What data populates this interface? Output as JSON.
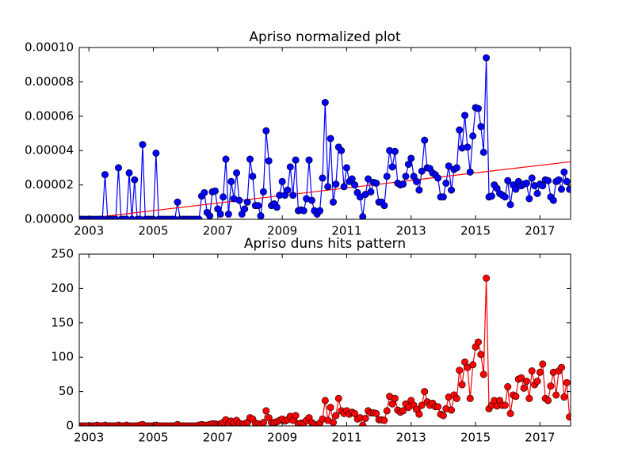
{
  "chart_data": [
    {
      "type": "line",
      "title": "Apriso normalized plot",
      "xlim": [
        2002.7,
        2017.95
      ],
      "xticks": [
        2003,
        2005,
        2007,
        2009,
        2011,
        2013,
        2015,
        2017
      ],
      "ylim": [
        0,
        0.0001
      ],
      "yticks": [
        {
          "value": 0,
          "label": "0.00000"
        },
        {
          "value": 2e-05,
          "label": "0.00002"
        },
        {
          "value": 4e-05,
          "label": "0.00004"
        },
        {
          "value": 6e-05,
          "label": "0.00006"
        },
        {
          "value": 8e-05,
          "label": "0.00008"
        },
        {
          "value": 0.0001,
          "label": "0.00010"
        }
      ],
      "series": [
        {
          "color": "#0000ff",
          "marker": true,
          "x": [
            2002.75,
            2002.833,
            2002.917,
            2003,
            2003.083,
            2003.167,
            2003.25,
            2003.333,
            2003.417,
            2003.5,
            2003.583,
            2003.667,
            2003.75,
            2003.833,
            2003.917,
            2004,
            2004.083,
            2004.167,
            2004.25,
            2004.333,
            2004.417,
            2004.5,
            2004.583,
            2004.667,
            2004.75,
            2004.833,
            2004.917,
            2005,
            2005.083,
            2005.167,
            2005.25,
            2005.333,
            2005.417,
            2005.5,
            2005.583,
            2005.667,
            2005.75,
            2005.833,
            2005.917,
            2006,
            2006.083,
            2006.167,
            2006.25,
            2006.333,
            2006.417,
            2006.5,
            2006.583,
            2006.667,
            2006.75,
            2006.833,
            2006.917,
            2007,
            2007.083,
            2007.167,
            2007.25,
            2007.333,
            2007.417,
            2007.5,
            2007.583,
            2007.667,
            2007.75,
            2007.833,
            2007.917,
            2008,
            2008.083,
            2008.167,
            2008.25,
            2008.333,
            2008.417,
            2008.5,
            2008.583,
            2008.667,
            2008.75,
            2008.833,
            2008.917,
            2009,
            2009.083,
            2009.167,
            2009.25,
            2009.333,
            2009.417,
            2009.5,
            2009.583,
            2009.667,
            2009.75,
            2009.833,
            2009.917,
            2010,
            2010.083,
            2010.167,
            2010.25,
            2010.333,
            2010.417,
            2010.5,
            2010.583,
            2010.667,
            2010.75,
            2010.833,
            2010.917,
            2011,
            2011.083,
            2011.167,
            2011.25,
            2011.333,
            2011.417,
            2011.5,
            2011.583,
            2011.667,
            2011.75,
            2011.833,
            2011.917,
            2012,
            2012.083,
            2012.167,
            2012.25,
            2012.333,
            2012.417,
            2012.5,
            2012.583,
            2012.667,
            2012.75,
            2012.833,
            2012.917,
            2013,
            2013.083,
            2013.167,
            2013.25,
            2013.333,
            2013.417,
            2013.5,
            2013.583,
            2013.667,
            2013.75,
            2013.833,
            2013.917,
            2014,
            2014.083,
            2014.167,
            2014.25,
            2014.333,
            2014.417,
            2014.5,
            2014.583,
            2014.667,
            2014.75,
            2014.833,
            2014.917,
            2015,
            2015.083,
            2015.167,
            2015.25,
            2015.333,
            2015.417,
            2015.5,
            2015.583,
            2015.667,
            2015.75,
            2015.833,
            2015.917,
            2016,
            2016.083,
            2016.167,
            2016.25,
            2016.333,
            2016.417,
            2016.5,
            2016.583,
            2016.667,
            2016.75,
            2016.833,
            2016.917,
            2017,
            2017.083,
            2017.167,
            2017.25,
            2017.333,
            2017.417,
            2017.5,
            2017.583,
            2017.667,
            2017.75,
            2017.833,
            2017.917
          ],
          "values": [
            0,
            0,
            0,
            0,
            0,
            0,
            0,
            0,
            0,
            2.6e-05,
            0,
            0,
            0,
            0,
            3e-05,
            0,
            0,
            0,
            2.7e-05,
            0,
            2.3e-05,
            0,
            0,
            4.35e-05,
            0,
            0,
            0,
            0,
            3.85e-05,
            0,
            0,
            0,
            0,
            0,
            0,
            0,
            1e-05,
            0,
            0,
            0,
            0,
            0,
            0,
            0,
            0,
            1.35e-05,
            1.55e-05,
            4e-06,
            2e-06,
            1.6e-05,
            1.65e-05,
            6e-06,
            3e-06,
            1.3e-05,
            3.5e-05,
            3e-06,
            2.2e-05,
            1.2e-05,
            2.7e-05,
            1.1e-05,
            3e-06,
            6e-06,
            1e-05,
            3.5e-05,
            2.5e-05,
            8e-06,
            8e-06,
            2e-06,
            1.6e-05,
            5.15e-05,
            3.4e-05,
            8e-06,
            9e-06,
            7e-06,
            1.4e-05,
            2.2e-05,
            1.4e-05,
            1.7e-05,
            3.05e-05,
            1.4e-05,
            3.45e-05,
            5e-06,
            5.5e-06,
            5e-06,
            1.2e-05,
            3.45e-05,
            1.1e-05,
            5e-06,
            3e-06,
            5e-06,
            2.4e-05,
            6.8e-05,
            1.9e-05,
            4.7e-05,
            1e-05,
            2.05e-05,
            4.2e-05,
            4e-05,
            1.9e-05,
            3e-05,
            2.2e-05,
            2.35e-05,
            2e-05,
            1.55e-05,
            1.3e-05,
            1.5e-06,
            1.45e-05,
            2.35e-05,
            1.6e-05,
            2.15e-05,
            2.1e-05,
            1e-05,
            1e-05,
            8e-06,
            2.5e-05,
            4e-05,
            3.05e-05,
            3.95e-05,
            2.1e-05,
            2e-05,
            2.05e-05,
            2.5e-05,
            3.2e-05,
            3.55e-05,
            2.5e-05,
            2.2e-05,
            1.7e-05,
            2.8e-05,
            4.6e-05,
            3e-05,
            2.95e-05,
            2.7e-05,
            2.6e-05,
            2.4e-05,
            1.3e-05,
            1.3e-05,
            2.1e-05,
            3.1e-05,
            1.7e-05,
            2.9e-05,
            3e-05,
            5.2e-05,
            4.15e-05,
            6.05e-05,
            4.2e-05,
            2.75e-05,
            4.85e-05,
            6.5e-05,
            6.45e-05,
            5.4e-05,
            3.9e-05,
            9.4e-05,
            1.3e-05,
            1.35e-05,
            2e-05,
            1.8e-05,
            1.5e-05,
            1.4e-05,
            1.3e-05,
            2.25e-05,
            8.5e-06,
            2e-05,
            1.75e-05,
            2.2e-05,
            1.95e-05,
            2.05e-05,
            2.1e-05,
            1.2e-05,
            2.4e-05,
            1.95e-05,
            1.5e-05,
            2.05e-05,
            1.95e-05,
            2.3e-05,
            2.25e-05,
            1.3e-05,
            1.1e-05,
            2.2e-05,
            2.3e-05,
            1.75e-05,
            2.75e-05,
            2.2e-05,
            1.75e-05
          ]
        },
        {
          "color": "#ff0000",
          "marker": false,
          "x": [
            2002.7,
            2017.95
          ],
          "values": [
            0,
            3.35e-05
          ]
        }
      ]
    },
    {
      "type": "line",
      "title": "Apriso duns hits pattern",
      "xlim": [
        2002.7,
        2017.95
      ],
      "xticks": [
        2003,
        2005,
        2007,
        2009,
        2011,
        2013,
        2015,
        2017
      ],
      "ylim": [
        0,
        250
      ],
      "yticks": [
        0,
        50,
        100,
        150,
        200,
        250
      ],
      "series": [
        {
          "color": "#ff0000",
          "marker": true,
          "x": [
            2002.75,
            2002.833,
            2002.917,
            2003,
            2003.083,
            2003.167,
            2003.25,
            2003.333,
            2003.417,
            2003.5,
            2003.583,
            2003.667,
            2003.75,
            2003.833,
            2003.917,
            2004,
            2004.083,
            2004.167,
            2004.25,
            2004.333,
            2004.417,
            2004.5,
            2004.583,
            2004.667,
            2004.75,
            2004.833,
            2004.917,
            2005,
            2005.083,
            2005.167,
            2005.25,
            2005.333,
            2005.417,
            2005.5,
            2005.583,
            2005.667,
            2005.75,
            2005.833,
            2005.917,
            2006,
            2006.083,
            2006.167,
            2006.25,
            2006.333,
            2006.417,
            2006.5,
            2006.583,
            2006.667,
            2006.75,
            2006.833,
            2006.917,
            2007,
            2007.083,
            2007.167,
            2007.25,
            2007.333,
            2007.417,
            2007.5,
            2007.583,
            2007.667,
            2007.75,
            2007.833,
            2007.917,
            2008,
            2008.083,
            2008.167,
            2008.25,
            2008.333,
            2008.417,
            2008.5,
            2008.583,
            2008.667,
            2008.75,
            2008.833,
            2008.917,
            2009,
            2009.083,
            2009.167,
            2009.25,
            2009.333,
            2009.417,
            2009.5,
            2009.583,
            2009.667,
            2009.75,
            2009.833,
            2009.917,
            2010,
            2010.083,
            2010.167,
            2010.25,
            2010.333,
            2010.417,
            2010.5,
            2010.583,
            2010.667,
            2010.75,
            2010.833,
            2010.917,
            2011,
            2011.083,
            2011.167,
            2011.25,
            2011.333,
            2011.417,
            2011.5,
            2011.583,
            2011.667,
            2011.75,
            2011.833,
            2011.917,
            2012,
            2012.083,
            2012.167,
            2012.25,
            2012.333,
            2012.417,
            2012.5,
            2012.583,
            2012.667,
            2012.75,
            2012.833,
            2012.917,
            2013,
            2013.083,
            2013.167,
            2013.25,
            2013.333,
            2013.417,
            2013.5,
            2013.583,
            2013.667,
            2013.75,
            2013.833,
            2013.917,
            2014,
            2014.083,
            2014.167,
            2014.25,
            2014.333,
            2014.417,
            2014.5,
            2014.583,
            2014.667,
            2014.75,
            2014.833,
            2014.917,
            2015,
            2015.083,
            2015.167,
            2015.25,
            2015.333,
            2015.417,
            2015.5,
            2015.583,
            2015.667,
            2015.75,
            2015.833,
            2015.917,
            2016,
            2016.083,
            2016.167,
            2016.25,
            2016.333,
            2016.417,
            2016.5,
            2016.583,
            2016.667,
            2016.75,
            2016.833,
            2016.917,
            2017,
            2017.083,
            2017.167,
            2017.25,
            2017.333,
            2017.417,
            2017.5,
            2017.583,
            2017.667,
            2017.75,
            2017.833,
            2017.917
          ],
          "values": [
            0,
            0,
            0,
            0,
            0,
            0,
            1,
            0,
            0,
            1,
            0,
            0,
            0,
            0,
            1,
            0,
            0,
            1,
            0,
            0,
            0,
            0,
            1,
            2,
            0,
            0,
            0,
            0,
            1,
            0,
            0,
            0,
            0,
            0,
            0,
            0,
            2,
            0,
            0,
            0,
            0,
            0,
            0,
            0,
            1,
            2,
            1,
            1,
            2,
            3,
            3,
            2,
            3,
            5,
            9,
            3,
            7,
            5,
            8,
            4,
            2,
            3,
            5,
            12,
            10,
            4,
            3,
            2,
            5,
            22,
            12,
            5,
            5,
            6,
            8,
            10,
            7,
            9,
            14,
            8,
            15,
            3,
            4,
            4,
            8,
            12,
            5,
            2,
            1,
            4,
            10,
            37,
            8,
            27,
            5,
            15,
            40,
            22,
            18,
            22,
            17,
            20,
            18,
            10,
            12,
            1,
            11,
            22,
            19,
            19,
            18,
            9,
            9,
            8,
            22,
            43,
            32,
            40,
            23,
            20,
            22,
            32,
            27,
            37,
            30,
            24,
            17,
            30,
            50,
            35,
            30,
            33,
            28,
            28,
            17,
            15,
            25,
            42,
            23,
            45,
            40,
            81,
            60,
            93,
            85,
            40,
            89,
            115,
            122,
            104,
            75,
            215,
            25,
            30,
            37,
            29,
            37,
            30,
            30,
            57,
            18,
            45,
            43,
            68,
            70,
            55,
            65,
            40,
            80,
            60,
            65,
            78,
            90,
            40,
            37,
            58,
            78,
            45,
            80,
            85,
            42,
            63,
            13
          ]
        }
      ]
    }
  ]
}
